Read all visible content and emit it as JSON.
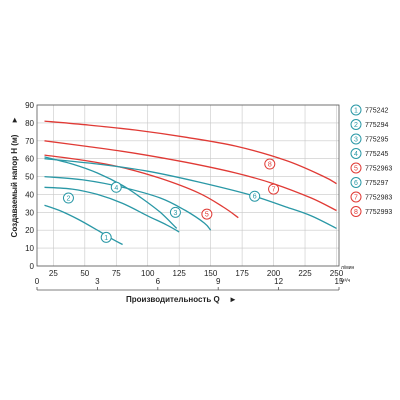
{
  "chart_data": {
    "type": "line",
    "title": "",
    "ylabel": "Создаваемый напор H (м)",
    "xlabel": "Производительность Q",
    "x_unit": "л/мин",
    "x2_unit": "м³/ч",
    "xlim": [
      12,
      252
    ],
    "ylim": [
      0,
      90
    ],
    "x_ticks": [
      25,
      50,
      75,
      100,
      125,
      150,
      175,
      200,
      225,
      250
    ],
    "y_ticks": [
      0,
      10,
      20,
      30,
      40,
      50,
      60,
      70,
      80,
      90
    ],
    "x2_ticks": [
      0,
      3,
      6,
      9,
      12,
      15
    ],
    "grid": true,
    "legend_position": "right",
    "colors": {
      "blue": "#2a98a6",
      "red": "#e03a35"
    },
    "series": [
      {
        "name": "775242",
        "number": "1",
        "color": "blue",
        "x": [
          18,
          30,
          45,
          60,
          72,
          80
        ],
        "y": [
          34,
          31,
          26,
          20,
          15,
          12
        ]
      },
      {
        "name": "775294",
        "number": "2",
        "color": "blue",
        "x": [
          18,
          40,
          60,
          80,
          100,
          115,
          125
        ],
        "y": [
          44,
          43,
          40,
          35,
          28,
          23,
          19
        ]
      },
      {
        "name": "775295",
        "number": "3",
        "color": "blue",
        "x": [
          18,
          50,
          80,
          110,
          130,
          145,
          150
        ],
        "y": [
          50,
          48,
          44,
          38,
          31,
          24,
          20
        ]
      },
      {
        "name": "775245",
        "number": "4",
        "color": "blue",
        "x": [
          18,
          40,
          60,
          80,
          95,
          110,
          123
        ],
        "y": [
          61,
          57,
          52,
          45,
          38,
          30,
          21
        ]
      },
      {
        "name": "7752963",
        "number": "5",
        "color": "red",
        "x": [
          18,
          50,
          80,
          110,
          140,
          160,
          172
        ],
        "y": [
          62,
          59,
          55,
          49,
          41,
          33,
          27
        ]
      },
      {
        "name": "775297",
        "number": "6",
        "color": "blue",
        "x": [
          18,
          60,
          100,
          140,
          180,
          210,
          230,
          250
        ],
        "y": [
          60,
          57,
          53,
          47,
          40,
          33,
          28,
          21
        ]
      },
      {
        "name": "7752983",
        "number": "7",
        "color": "red",
        "x": [
          18,
          50,
          90,
          130,
          170,
          200,
          230,
          250
        ],
        "y": [
          70,
          67,
          63,
          58,
          52,
          46,
          38,
          31
        ]
      },
      {
        "name": "7752993",
        "number": "8",
        "color": "red",
        "x": [
          18,
          50,
          90,
          130,
          170,
          210,
          240,
          250
        ],
        "y": [
          81,
          79,
          76,
          72,
          67,
          59,
          50,
          46
        ]
      }
    ],
    "curve_markers": [
      {
        "number": "1",
        "x": 67,
        "y": 16
      },
      {
        "number": "2",
        "x": 37,
        "y": 38
      },
      {
        "number": "3",
        "x": 122,
        "y": 30
      },
      {
        "number": "4",
        "x": 75,
        "y": 44
      },
      {
        "number": "5",
        "x": 147,
        "y": 29
      },
      {
        "number": "6",
        "x": 185,
        "y": 39
      },
      {
        "number": "7",
        "x": 200,
        "y": 43
      },
      {
        "number": "8",
        "x": 197,
        "y": 57
      }
    ]
  }
}
